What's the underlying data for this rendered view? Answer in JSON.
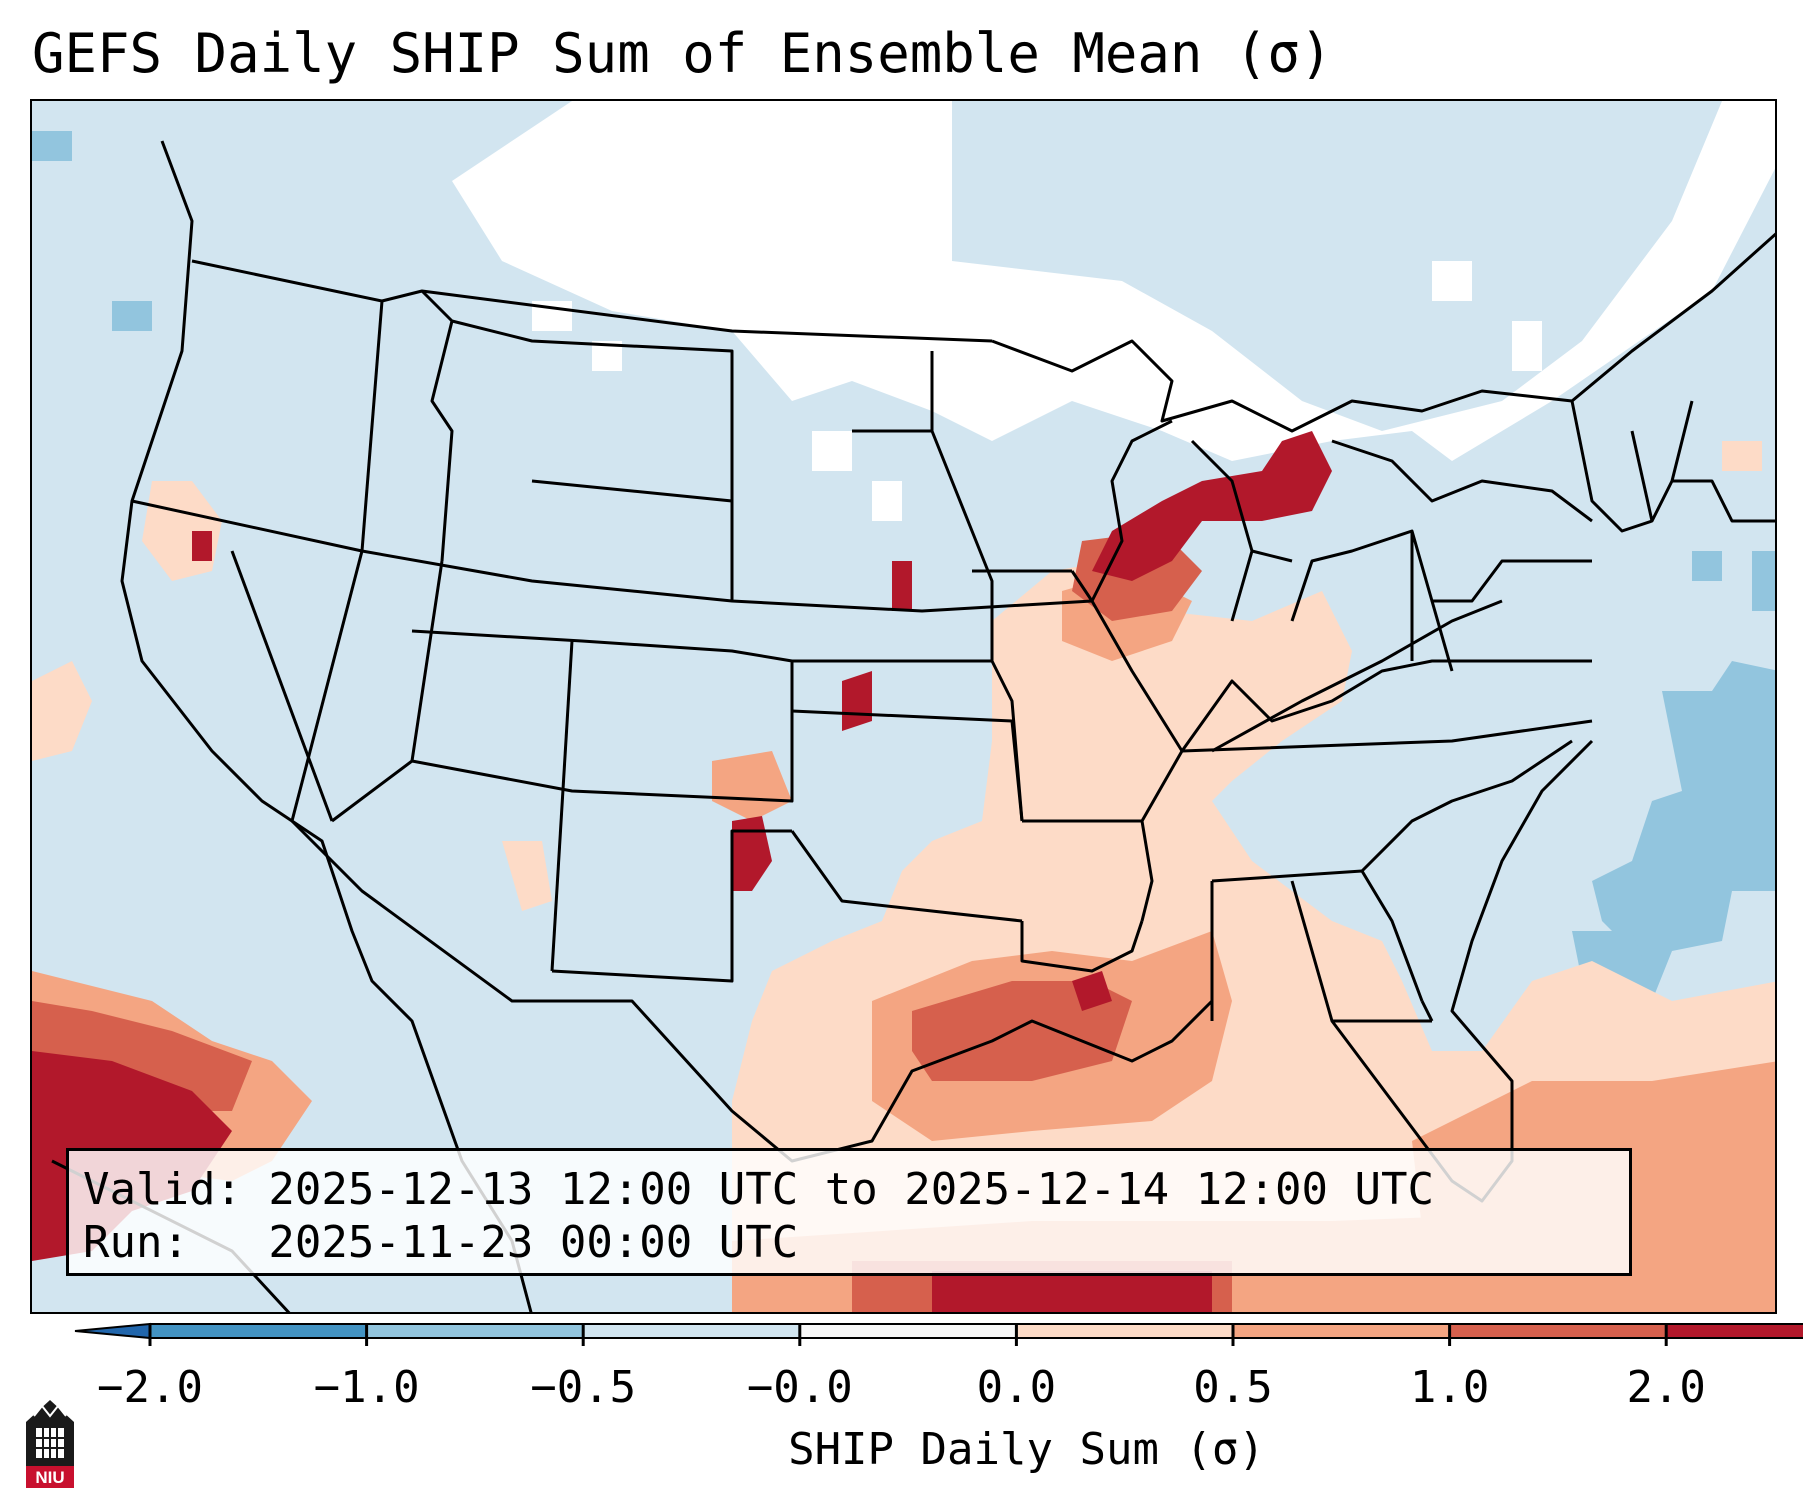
{
  "title": "GEFS Daily SHIP Sum of Ensemble Mean (σ)",
  "valid_line": "Valid: 2025-12-13 12:00 UTC to 2025-12-14 12:00 UTC",
  "run_line": "Run:   2025-11-23 00:00 UTC",
  "colorbar": {
    "label": "SHIP Daily Sum (σ)",
    "ticks": [
      "−2.0",
      "−1.0",
      "−0.5",
      "−0.0",
      "0.0",
      "0.5",
      "1.0",
      "2.0"
    ],
    "colors": [
      "#4393c3",
      "#92c5de",
      "#d1e5f0",
      "#f7f7f7",
      "#fddbc7",
      "#f4a582",
      "#d6604d",
      "#b2182b"
    ],
    "extend_low_color": "#2166ac",
    "extend_high_color": "#b2182b"
  },
  "logo": {
    "text": "NIU"
  },
  "map_colors": {
    "background": "#d2e5f0",
    "white": "#ffffff",
    "light_red": "#fddbc7",
    "med_red": "#f4a582",
    "red": "#d6604d",
    "dark_red": "#b2182b",
    "blue": "#92c5de",
    "outline": "#000000"
  }
}
